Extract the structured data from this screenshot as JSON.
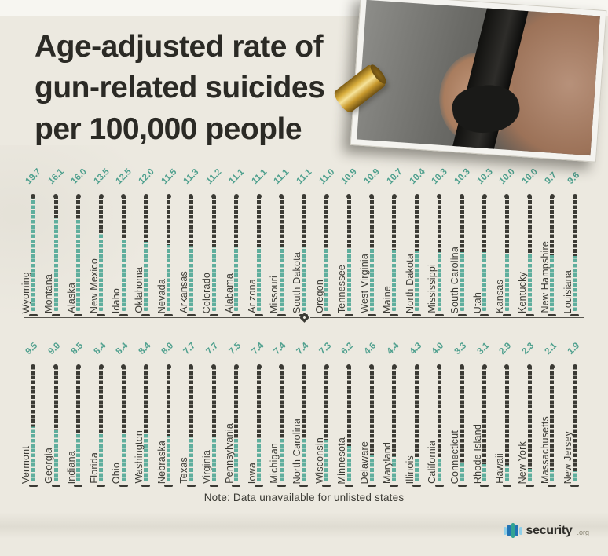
{
  "title": {
    "line1": "Age-adjusted rate of",
    "line2": "gun-related suicides",
    "line3": "per 100,000 people"
  },
  "chart_data": {
    "type": "bar",
    "title": "Age-adjusted rate of gun-related suicides per 100,000 people",
    "value_unit": "suicides per 100,000 people",
    "scale_max": 20,
    "orientation": "vertical",
    "rows": [
      {
        "states": [
          "Wyoming",
          "Montana",
          "Alaska",
          "New Mexico",
          "Idaho",
          "Oklahoma",
          "Nevada",
          "Arkansas",
          "Colorado",
          "Alabama",
          "Arizona",
          "Missouri",
          "South Dakota",
          "Oregon",
          "Tennessee",
          "West Virginia",
          "Maine",
          "North Dakota",
          "Mississippi",
          "South Carolina",
          "Utah",
          "Kansas",
          "Kentucky",
          "New Hampshire",
          "Louisiana"
        ],
        "values": [
          19.7,
          16.1,
          16.0,
          13.5,
          12.5,
          12.0,
          11.5,
          11.3,
          11.2,
          11.1,
          11.1,
          11.1,
          11.1,
          11.0,
          10.9,
          10.9,
          10.7,
          10.4,
          10.3,
          10.3,
          10.3,
          10.0,
          10.0,
          9.7,
          9.6
        ]
      },
      {
        "states": [
          "Vermont",
          "Georgia",
          "Indiana",
          "Florida",
          "Ohio",
          "Washington",
          "Nebraska",
          "Texas",
          "Virginia",
          "Pennsylvania",
          "Iowa",
          "Michigan",
          "North Carolina",
          "Wisconsin",
          "Minnesota",
          "Delaware",
          "Maryland",
          "Illinois",
          "California",
          "Connecticut",
          "Rhode Island",
          "Hawaii",
          "New York",
          "Massachusetts",
          "New Jersey"
        ],
        "values": [
          9.5,
          9.0,
          8.5,
          8.4,
          8.4,
          8.4,
          8.0,
          7.7,
          7.7,
          7.5,
          7.4,
          7.4,
          7.4,
          7.3,
          6.2,
          4.6,
          4.4,
          4.3,
          4.0,
          3.3,
          3.1,
          2.9,
          2.3,
          2.1,
          1.9
        ]
      }
    ]
  },
  "note": "Note: Data unavailable for unlisted states",
  "logo": {
    "name": "security",
    "tld": ".org"
  },
  "colors": {
    "background": "#ECE9E0",
    "bar_teal": "#5FAE9D",
    "bar_dark": "#3B3A34",
    "accent_teal": "#4FA08E",
    "title_text": "#2B2A25"
  }
}
